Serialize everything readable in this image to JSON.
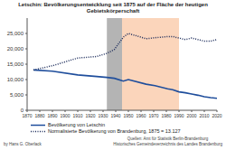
{
  "header": {
    "title": "Letschin: Bevölkerungsentwicklung seit 1875 auf der Fläche der heutigen Gebietskörperschaft",
    "author": "by Hans G. Oberlack",
    "source": [
      "Quellen: Amt für Statistik Berlin-Brandenburg",
      "Historisches Gemeindeverzeichnis des Landes Brandenburg"
    ]
  },
  "chart_data": {
    "type": "line",
    "x": [
      1875,
      1890,
      1910,
      1925,
      1933,
      1939,
      1946,
      1950,
      1964,
      1971,
      1981,
      1985,
      1990,
      1995,
      2000,
      2005,
      2010,
      2015,
      2020
    ],
    "series": [
      {
        "name": "Bevölkerung von Letschin",
        "color": "#1f4e9c",
        "line_style": "solid",
        "values": [
          13127,
          12700,
          11500,
          11000,
          10700,
          10400,
          9500,
          10000,
          8500,
          8000,
          7000,
          6700,
          6000,
          5700,
          5300,
          4900,
          4400,
          4100,
          3900
        ]
      },
      {
        "name": "Normalisierte Bevölkerung von Brandenburg, 1875 = 13.127",
        "color": "#1a2a5a",
        "line_style": "dotted",
        "values": [
          13127,
          14500,
          17000,
          17500,
          18500,
          19800,
          23800,
          25000,
          23300,
          23600,
          24000,
          24000,
          23500,
          23000,
          23500,
          23000,
          22500,
          22500,
          23000
        ]
      }
    ],
    "xlim": [
      1870,
      2020
    ],
    "xticks": [
      1870,
      1880,
      1890,
      1900,
      1910,
      1920,
      1930,
      1940,
      1950,
      1960,
      1970,
      1980,
      1990,
      2000,
      2010,
      2020
    ],
    "ylim": [
      0,
      30000
    ],
    "yticks": [
      0,
      {
        "value": 5000,
        "label": "5,000"
      },
      {
        "value": 10000,
        "label": "10,000"
      },
      {
        "value": 15000,
        "label": "15,000"
      },
      {
        "value": 20000,
        "label": "20,000"
      },
      {
        "value": 25000,
        "label": "25,000"
      }
    ],
    "shaded_periods": [
      {
        "x": [
          1933,
          1945
        ],
        "color": "#b4b4b4"
      },
      {
        "x": [
          1945,
          1990
        ],
        "color": "#fbd5bb"
      }
    ],
    "grid": false
  }
}
